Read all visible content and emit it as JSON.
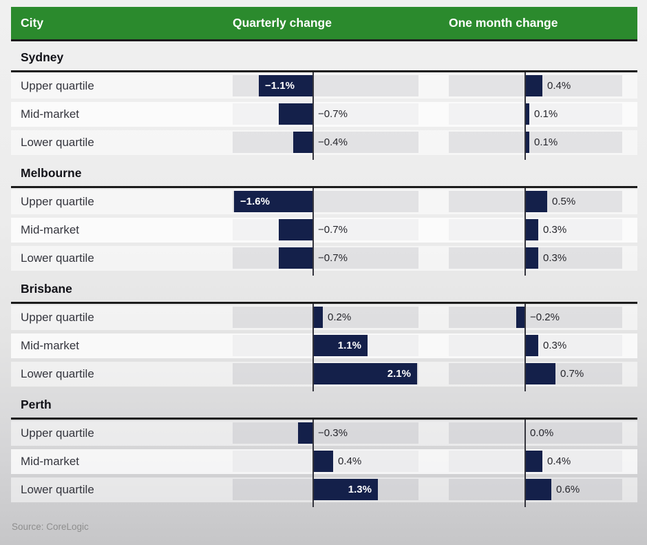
{
  "colors": {
    "header_green": "#2b8a2d",
    "bar_navy": "#14204a",
    "divider_dark": "#1b1b1b",
    "zero_line": "#35353d",
    "value_text": "#26262c",
    "source_text": "#8e8e8e"
  },
  "header": {
    "city": "City",
    "quarterly": "Quarterly change",
    "one_month": "One month change"
  },
  "source_note": "Source: CoreLogic",
  "chart_data": {
    "type": "bar",
    "orientation": "horizontal",
    "unit": "%",
    "columns": [
      "City",
      "Quarterly change",
      "One month change"
    ],
    "row_labels": [
      "Upper quartile",
      "Mid-market",
      "Lower quartile"
    ],
    "groups": [
      {
        "city": "Sydney",
        "rows": [
          {
            "label": "Upper quartile",
            "quarterly": {
              "value": -1.1,
              "display": "−1.1%"
            },
            "one_month": {
              "value": 0.4,
              "display": "0.4%"
            }
          },
          {
            "label": "Mid-market",
            "quarterly": {
              "value": -0.7,
              "display": "−0.7%"
            },
            "one_month": {
              "value": 0.1,
              "display": "0.1%"
            }
          },
          {
            "label": "Lower quartile",
            "quarterly": {
              "value": -0.4,
              "display": "−0.4%"
            },
            "one_month": {
              "value": 0.1,
              "display": "0.1%"
            }
          }
        ]
      },
      {
        "city": "Melbourne",
        "rows": [
          {
            "label": "Upper quartile",
            "quarterly": {
              "value": -1.6,
              "display": "−1.6%"
            },
            "one_month": {
              "value": 0.5,
              "display": "0.5%"
            }
          },
          {
            "label": "Mid-market",
            "quarterly": {
              "value": -0.7,
              "display": "−0.7%"
            },
            "one_month": {
              "value": 0.3,
              "display": "0.3%"
            }
          },
          {
            "label": "Lower quartile",
            "quarterly": {
              "value": -0.7,
              "display": "−0.7%"
            },
            "one_month": {
              "value": 0.3,
              "display": "0.3%"
            }
          }
        ]
      },
      {
        "city": "Brisbane",
        "rows": [
          {
            "label": "Upper quartile",
            "quarterly": {
              "value": 0.2,
              "display": "0.2%"
            },
            "one_month": {
              "value": -0.2,
              "display": "−0.2%"
            }
          },
          {
            "label": "Mid-market",
            "quarterly": {
              "value": 1.1,
              "display": "1.1%"
            },
            "one_month": {
              "value": 0.3,
              "display": "0.3%"
            }
          },
          {
            "label": "Lower quartile",
            "quarterly": {
              "value": 2.1,
              "display": "2.1%"
            },
            "one_month": {
              "value": 0.7,
              "display": "0.7%"
            }
          }
        ]
      },
      {
        "city": "Perth",
        "rows": [
          {
            "label": "Upper quartile",
            "quarterly": {
              "value": -0.3,
              "display": "−0.3%"
            },
            "one_month": {
              "value": 0.0,
              "display": "0.0%"
            }
          },
          {
            "label": "Mid-market",
            "quarterly": {
              "value": 0.4,
              "display": "0.4%"
            },
            "one_month": {
              "value": 0.4,
              "display": "0.4%"
            }
          },
          {
            "label": "Lower quartile",
            "quarterly": {
              "value": 1.3,
              "display": "1.3%"
            },
            "one_month": {
              "value": 0.6,
              "display": "0.6%"
            }
          }
        ]
      }
    ]
  }
}
